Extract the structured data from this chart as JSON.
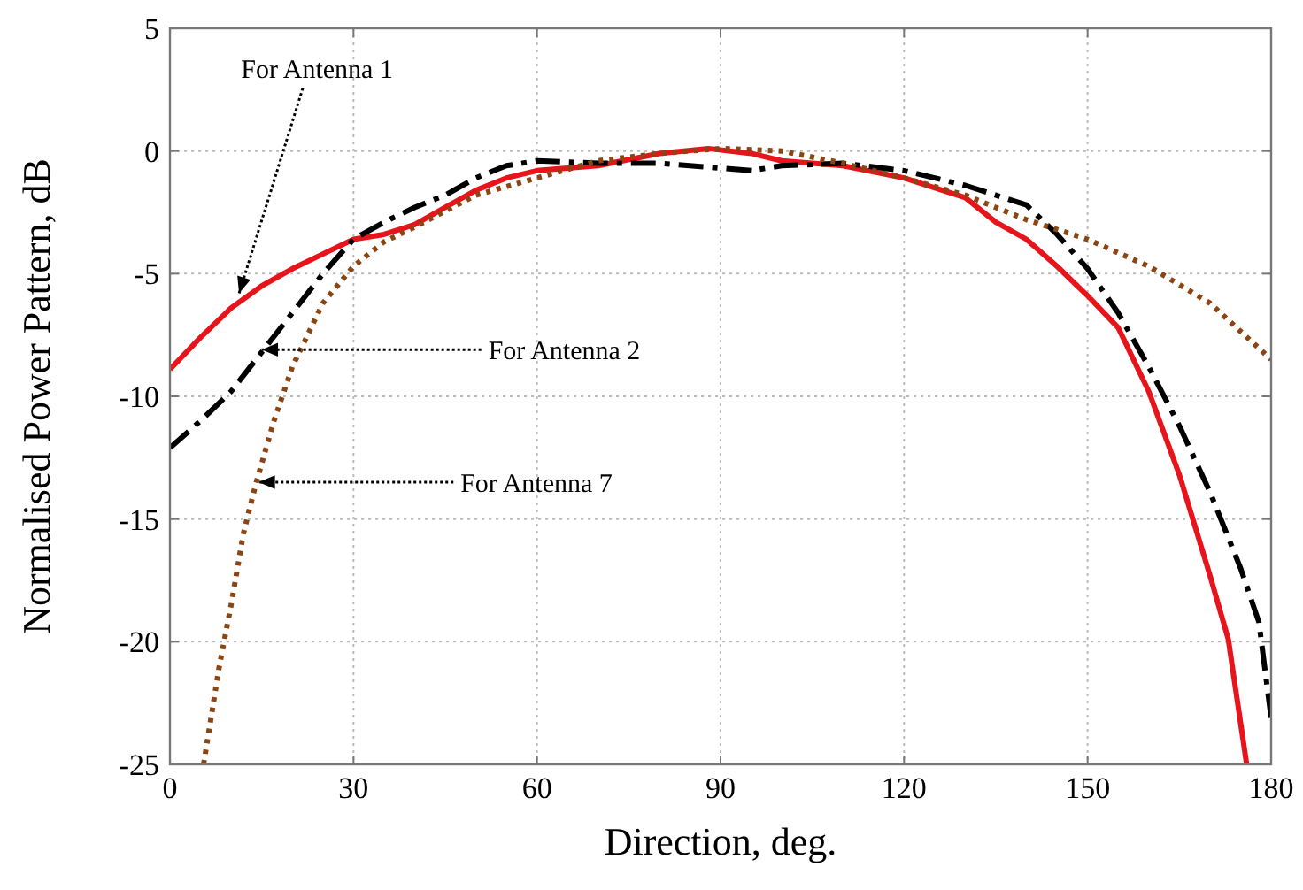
{
  "chart_data": {
    "type": "line",
    "xlabel": "Direction, deg.",
    "ylabel": "Normalised Power Pattern, dB",
    "xlim": [
      0,
      180
    ],
    "ylim": [
      -25,
      5
    ],
    "xticks": [
      0,
      30,
      60,
      90,
      120,
      150,
      180
    ],
    "yticks": [
      -25,
      -20,
      -15,
      -10,
      -5,
      0,
      5
    ],
    "grid": true,
    "series": [
      {
        "color": "#e8141b",
        "line_style": "solid",
        "x": [
          0,
          5,
          10,
          15,
          20,
          25,
          30,
          35,
          40,
          45,
          50,
          55,
          60,
          70,
          80,
          88,
          95,
          100,
          110,
          120,
          130,
          135,
          140,
          145,
          150,
          155,
          160,
          165,
          170,
          173,
          176
        ],
        "values": [
          -8.9,
          -7.6,
          -6.4,
          -5.5,
          -4.8,
          -4.2,
          -3.6,
          -3.4,
          -3.0,
          -2.3,
          -1.6,
          -1.1,
          -0.8,
          -0.6,
          -0.1,
          0.1,
          -0.1,
          -0.4,
          -0.6,
          -1.1,
          -1.9,
          -2.9,
          -3.6,
          -4.7,
          -5.9,
          -7.2,
          -9.8,
          -13.2,
          -17.3,
          -19.9,
          -25
        ]
      },
      {
        "color": "#000000",
        "line_style": "dashed",
        "x": [
          0,
          5,
          10,
          15,
          20,
          25,
          30,
          35,
          40,
          45,
          50,
          55,
          60,
          70,
          80,
          90,
          95,
          100,
          110,
          120,
          130,
          140,
          145,
          150,
          155,
          160,
          165,
          170,
          175,
          178,
          180
        ],
        "values": [
          -12.1,
          -11,
          -9.8,
          -8.2,
          -6.6,
          -5.0,
          -3.6,
          -2.9,
          -2.3,
          -1.8,
          -1.1,
          -0.6,
          -0.4,
          -0.5,
          -0.5,
          -0.7,
          -0.8,
          -0.6,
          -0.5,
          -0.8,
          -1.4,
          -2.2,
          -3.4,
          -4.8,
          -6.6,
          -8.8,
          -11.2,
          -13.9,
          -17,
          -19.2,
          -23.1
        ]
      },
      {
        "color": "#8b4513",
        "line_style": "dotted",
        "x": [
          5.5,
          8,
          10,
          12,
          14,
          17,
          20,
          25,
          30,
          35,
          40,
          50,
          60,
          70,
          80,
          90,
          100,
          110,
          120,
          130,
          140,
          150,
          160,
          170,
          180
        ],
        "values": [
          -25,
          -21.1,
          -18.5,
          -15.6,
          -13.6,
          -11,
          -8.8,
          -6.2,
          -4.7,
          -3.7,
          -3.1,
          -1.8,
          -1.1,
          -0.4,
          -0.1,
          0.1,
          0,
          -0.5,
          -1.1,
          -1.8,
          -2.8,
          -3.6,
          -4.7,
          -6.2,
          -8.5
        ]
      }
    ],
    "annotations": [
      {
        "text": "For Antenna 1",
        "x": 11.3,
        "y": -5.8
      },
      {
        "text": "For Antenna 2",
        "x": 15,
        "y": -8.1
      },
      {
        "text": "For Antenna 7",
        "x": 14.5,
        "y": -13.5
      }
    ]
  }
}
